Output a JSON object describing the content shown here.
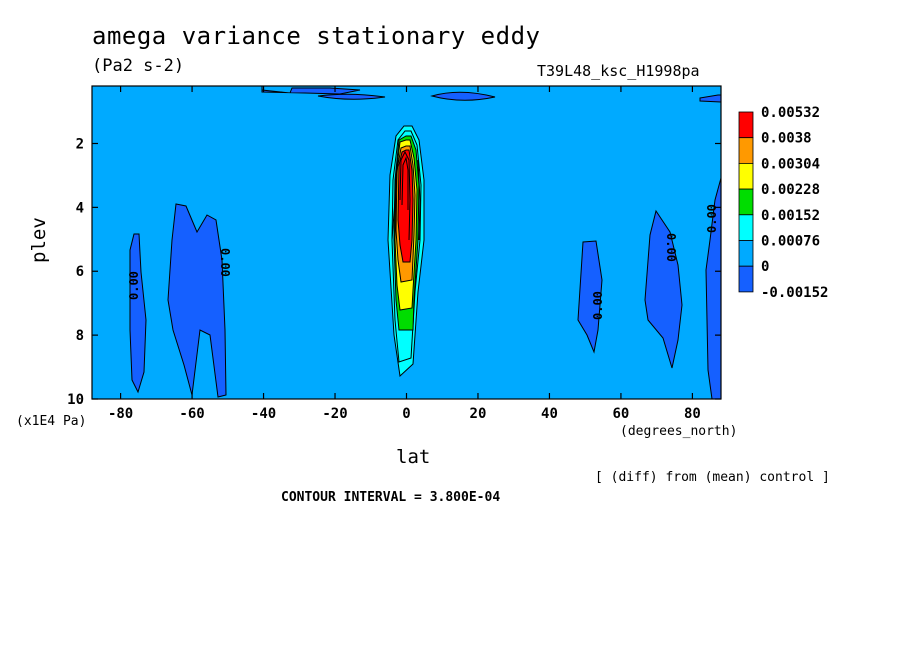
{
  "chart_data": {
    "type": "heatmap",
    "title": "amega variance stationary eddy",
    "units": "(Pa2 s-2)",
    "run_label": "T39L48_ksc_H1998pa",
    "xlabel": "lat",
    "x_units": "(degrees_north)",
    "ylabel": "plev",
    "y_units": "(x1E4 Pa)",
    "xlim": [
      -88,
      88
    ],
    "ylim": [
      10,
      0.2
    ],
    "x_ticks": [
      "-80",
      "-60",
      "-40",
      "-20",
      "0",
      "20",
      "40",
      "60",
      "80"
    ],
    "y_ticks": [
      "2",
      "4",
      "6",
      "8",
      "10"
    ],
    "colorbar": {
      "labels": [
        "0.00532",
        "0.0038",
        "0.00304",
        "0.00228",
        "0.00152",
        "0.00076",
        "0",
        "-0.00152"
      ],
      "colors": [
        "#ff0000",
        "#ff9900",
        "#ffff00",
        "#00dd00",
        "#00ffff",
        "#00aaff",
        "#1560ff"
      ]
    },
    "contour_labels": [
      "0.00",
      "0.00",
      "0.00",
      "0.00",
      "0.00"
    ],
    "footnote": "[ (diff) from (mean) control ]",
    "contour_interval": "CONTOUR INTERVAL = 3.800E-04"
  }
}
